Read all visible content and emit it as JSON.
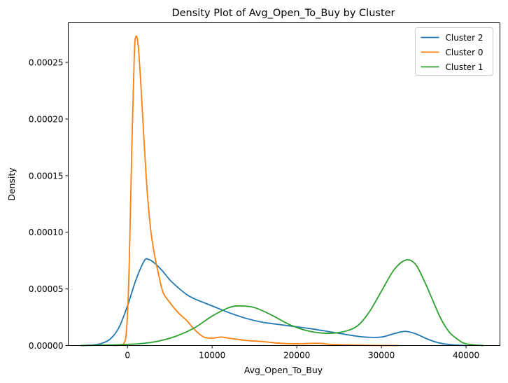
{
  "chart_data": {
    "type": "line",
    "title": "Density Plot of Avg_Open_To_Buy by Cluster",
    "xlabel": "Avg_Open_To_Buy",
    "ylabel": "Density",
    "xlim": [
      -7000,
      44000
    ],
    "ylim": [
      0,
      0.000285
    ],
    "xticks": [
      0,
      10000,
      20000,
      30000,
      40000
    ],
    "xtick_labels": [
      "0",
      "10000",
      "20000",
      "30000",
      "40000"
    ],
    "yticks": [
      0,
      5e-05,
      0.0001,
      0.00015,
      0.0002,
      0.00025
    ],
    "ytick_labels": [
      "0.00000",
      "0.00005",
      "0.00010",
      "0.00015",
      "0.00020",
      "0.00025"
    ],
    "grid": false,
    "legend": "top-right",
    "series": [
      {
        "name": "Cluster 2",
        "color": "#1f77b4",
        "points": [
          [
            -5500,
            0
          ],
          [
            -4000,
            5e-07
          ],
          [
            -3000,
            2e-06
          ],
          [
            -2000,
            6e-06
          ],
          [
            -1000,
            1.6e-05
          ],
          [
            0,
            3.5e-05
          ],
          [
            1000,
            5.8e-05
          ],
          [
            2000,
            7.5e-05
          ],
          [
            2500,
            7.6e-05
          ],
          [
            3000,
            7.4e-05
          ],
          [
            4000,
            6.7e-05
          ],
          [
            5000,
            5.8e-05
          ],
          [
            6000,
            5.1e-05
          ],
          [
            7000,
            4.5e-05
          ],
          [
            8000,
            4.1e-05
          ],
          [
            10000,
            3.5e-05
          ],
          [
            12000,
            2.9e-05
          ],
          [
            14000,
            2.4e-05
          ],
          [
            16000,
            2.05e-05
          ],
          [
            18000,
            1.85e-05
          ],
          [
            20000,
            1.65e-05
          ],
          [
            22000,
            1.45e-05
          ],
          [
            24000,
            1.2e-05
          ],
          [
            26000,
            9.5e-06
          ],
          [
            28000,
            7.5e-06
          ],
          [
            30000,
            7.5e-06
          ],
          [
            31500,
            1.05e-05
          ],
          [
            32800,
            1.25e-05
          ],
          [
            34000,
            1.05e-05
          ],
          [
            35500,
            5.5e-06
          ],
          [
            37000,
            2e-06
          ],
          [
            38500,
            5e-07
          ],
          [
            40000,
            0
          ]
        ]
      },
      {
        "name": "Cluster 0",
        "color": "#ff7f0e",
        "points": [
          [
            -1500,
            0
          ],
          [
            -500,
            1e-06
          ],
          [
            -100,
            1.5e-05
          ],
          [
            200,
            7e-05
          ],
          [
            500,
            0.00017
          ],
          [
            800,
            0.000255
          ],
          [
            1000,
            0.000273
          ],
          [
            1300,
            0.000262
          ],
          [
            1700,
            0.000215
          ],
          [
            2200,
            0.00015
          ],
          [
            2700,
            0.000105
          ],
          [
            3200,
            8e-05
          ],
          [
            3700,
            6.2e-05
          ],
          [
            4200,
            4.7e-05
          ],
          [
            5000,
            3.8e-05
          ],
          [
            6000,
            2.9e-05
          ],
          [
            7000,
            2.2e-05
          ],
          [
            8000,
            1.35e-05
          ],
          [
            9000,
            7.5e-06
          ],
          [
            10000,
            6.5e-06
          ],
          [
            11000,
            7.5e-06
          ],
          [
            12000,
            6.5e-06
          ],
          [
            14000,
            4.5e-06
          ],
          [
            16000,
            3.5e-06
          ],
          [
            18000,
            2e-06
          ],
          [
            20000,
            1.5e-06
          ],
          [
            22500,
            2e-06
          ],
          [
            24000,
            1e-06
          ],
          [
            26000,
            6e-07
          ],
          [
            28000,
            2e-07
          ],
          [
            32000,
            0
          ]
        ]
      },
      {
        "name": "Cluster 1",
        "color": "#2ca02c",
        "points": [
          [
            -5500,
            0
          ],
          [
            -2000,
            5e-07
          ],
          [
            0,
            1e-06
          ],
          [
            2000,
            2e-06
          ],
          [
            4000,
            4.5e-06
          ],
          [
            6000,
            9e-06
          ],
          [
            8000,
            1.6e-05
          ],
          [
            10000,
            2.6e-05
          ],
          [
            12000,
            3.35e-05
          ],
          [
            13300,
            3.5e-05
          ],
          [
            15000,
            3.35e-05
          ],
          [
            17000,
            2.7e-05
          ],
          [
            19000,
            1.9e-05
          ],
          [
            21000,
            1.35e-05
          ],
          [
            23000,
            1.1e-05
          ],
          [
            25000,
            1.15e-05
          ],
          [
            27000,
            1.65e-05
          ],
          [
            28500,
            2.9e-05
          ],
          [
            30000,
            4.8e-05
          ],
          [
            31500,
            6.7e-05
          ],
          [
            32900,
            7.55e-05
          ],
          [
            34000,
            7.2e-05
          ],
          [
            35000,
            5.8e-05
          ],
          [
            36000,
            4.1e-05
          ],
          [
            37000,
            2.4e-05
          ],
          [
            38000,
            1.2e-05
          ],
          [
            39000,
            5.5e-06
          ],
          [
            40000,
            1.5e-06
          ],
          [
            42000,
            0
          ]
        ]
      }
    ]
  }
}
